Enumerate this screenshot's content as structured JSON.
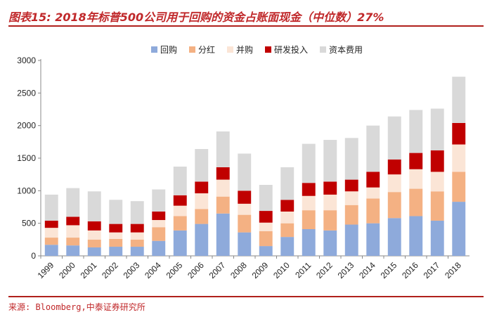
{
  "header": {
    "title": "图表15: 2018年标普500公司用于回购的资金占账面现金（中位数）27%"
  },
  "footer": {
    "source": "来源: Bloomberg,中泰证券研究所"
  },
  "chart_data": {
    "type": "bar",
    "stacked": true,
    "title": "图表15: 2018年标普500公司用于回购的资金占账面现金（中位数）27%",
    "xlabel": "",
    "ylabel": "",
    "ylim": [
      0,
      3000
    ],
    "yticks": [
      0,
      500,
      1000,
      1500,
      2000,
      2500,
      3000
    ],
    "legend_position": "top",
    "grid": false,
    "categories": [
      "1999",
      "2000",
      "2001",
      "2002",
      "2003",
      "2004",
      "2005",
      "2006",
      "2007",
      "2008",
      "2009",
      "2010",
      "2011",
      "2012",
      "2013",
      "2014",
      "2015",
      "2016",
      "2017",
      "2018"
    ],
    "series": [
      {
        "name": "回购",
        "color": "#8eaadb",
        "values": [
          170,
          160,
          130,
          140,
          140,
          230,
          390,
          490,
          650,
          360,
          150,
          290,
          410,
          390,
          480,
          500,
          580,
          610,
          540,
          830
        ]
      },
      {
        "name": "分红",
        "color": "#f4b183",
        "values": [
          110,
          120,
          120,
          120,
          110,
          210,
          220,
          230,
          260,
          270,
          230,
          210,
          290,
          310,
          300,
          380,
          400,
          420,
          450,
          460
        ]
      },
      {
        "name": "并购",
        "color": "#fbe5d6",
        "values": [
          150,
          190,
          140,
          100,
          110,
          110,
          160,
          240,
          260,
          170,
          130,
          180,
          220,
          240,
          210,
          170,
          270,
          300,
          300,
          420
        ]
      },
      {
        "name": "研发投入",
        "color": "#c00000",
        "values": [
          110,
          130,
          140,
          130,
          130,
          130,
          160,
          180,
          190,
          200,
          180,
          180,
          200,
          200,
          180,
          240,
          230,
          250,
          330,
          330
        ]
      },
      {
        "name": "资本费用",
        "color": "#d9d9d9",
        "values": [
          400,
          440,
          460,
          370,
          350,
          340,
          440,
          500,
          550,
          570,
          400,
          500,
          600,
          640,
          640,
          710,
          660,
          660,
          640,
          710
        ]
      }
    ]
  }
}
